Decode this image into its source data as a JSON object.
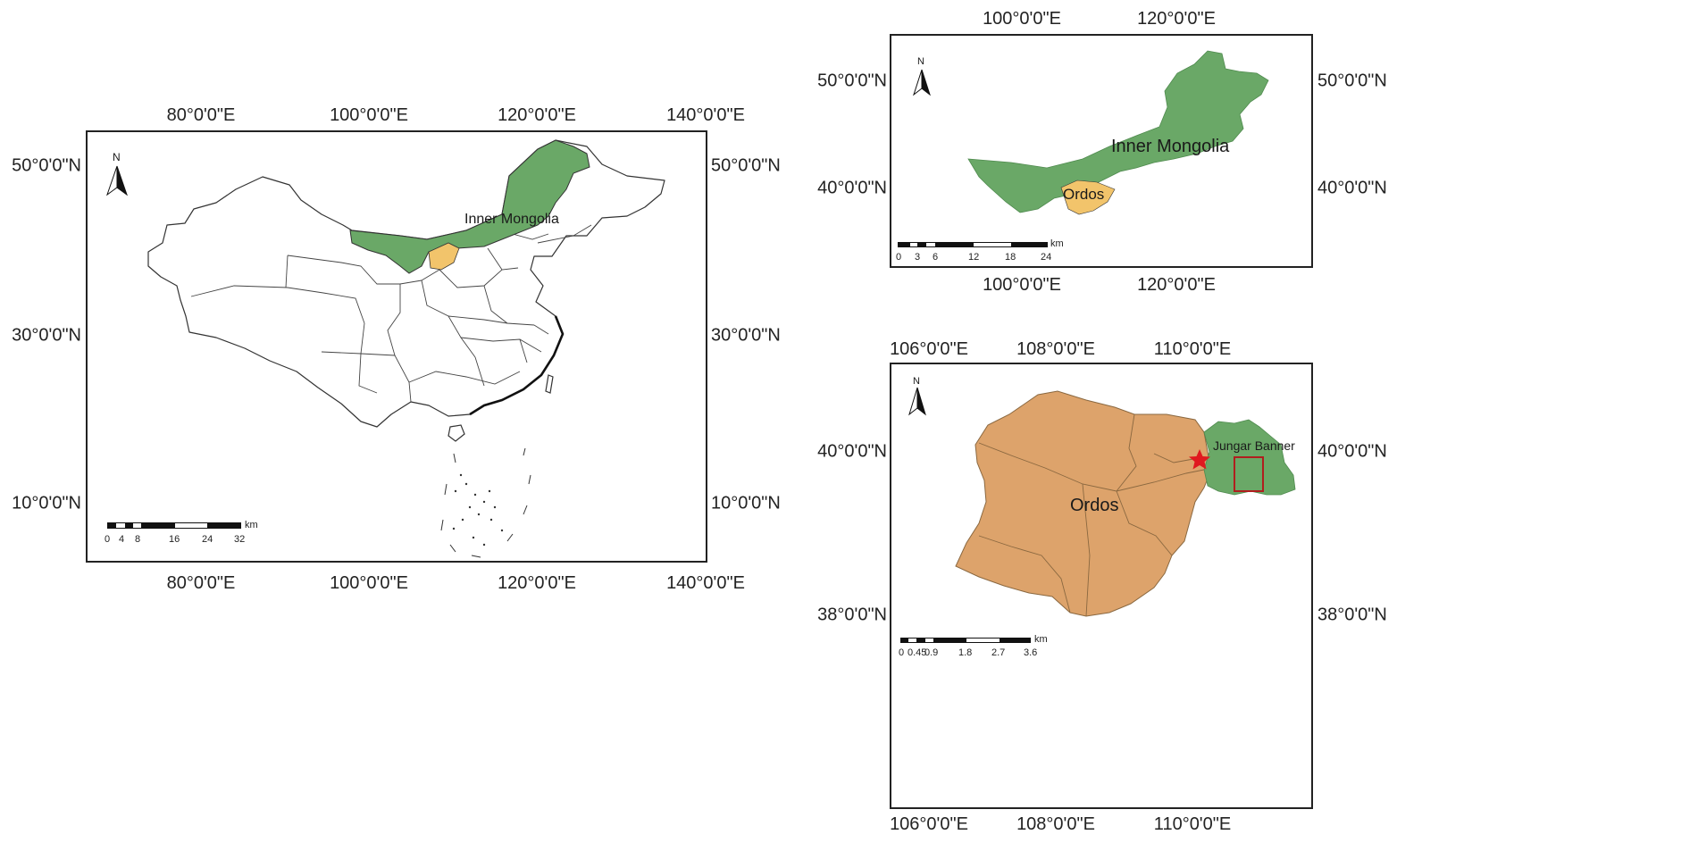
{
  "china_map": {
    "top_ticks": [
      "80°0'0\"E",
      "100°0'0\"E",
      "120°0'0\"E",
      "140°0'0\"E"
    ],
    "bottom_ticks": [
      "80°0'0\"E",
      "100°0'0\"E",
      "120°0'0\"E",
      "140°0'0\"E"
    ],
    "left_ticks": [
      "50°0'0\"N",
      "30°0'0\"N",
      "10°0'0\"N"
    ],
    "right_ticks": [
      "50°0'0\"N",
      "30°0'0\"N",
      "10°0'0\"N"
    ],
    "north_label": "N",
    "region_label": "Inner Mongolia",
    "scale_unit": "km",
    "scale_ticks": [
      "0",
      "4",
      "8",
      "16",
      "24",
      "32"
    ],
    "colors": {
      "inner_mongolia": "#6aa867",
      "ordos": "#f2c46b",
      "boundary": "#333333"
    }
  },
  "inner_mongolia_map": {
    "top_ticks": [
      "100°0'0\"E",
      "120°0'0\"E"
    ],
    "bottom_ticks": [
      "100°0'0\"E",
      "120°0'0\"E"
    ],
    "left_ticks": [
      "50°0'0\"N",
      "40°0'0\"N"
    ],
    "right_ticks": [
      "50°0'0\"N",
      "40°0'0\"N"
    ],
    "north_label": "N",
    "region_label": "Inner Mongolia",
    "sub_label": "Ordos",
    "scale_unit": "km",
    "scale_ticks": [
      "0",
      "3",
      "6",
      "12",
      "18",
      "24"
    ],
    "colors": {
      "inner_mongolia": "#6aa867",
      "ordos": "#f2c46b"
    }
  },
  "ordos_map": {
    "top_ticks": [
      "106°0'0\"E",
      "108°0'0\"E",
      "110°0'0\"E"
    ],
    "bottom_ticks": [
      "106°0'0\"E",
      "108°0'0\"E",
      "110°0'0\"E"
    ],
    "left_ticks": [
      "40°0'0\"N",
      "38°0'0\"N"
    ],
    "right_ticks": [
      "40°0'0\"N",
      "38°0'0\"N"
    ],
    "north_label": "N",
    "region_label": "Ordos",
    "sub_label": "Jungar Banner",
    "scale_unit": "km",
    "scale_ticks": [
      "0",
      "0.45",
      "0.9",
      "1.8",
      "2.7",
      "3.6"
    ],
    "colors": {
      "ordos": "#dda36b",
      "jungar": "#6aa867",
      "star": "#e0191f",
      "study_box": "#b01e1e"
    }
  }
}
